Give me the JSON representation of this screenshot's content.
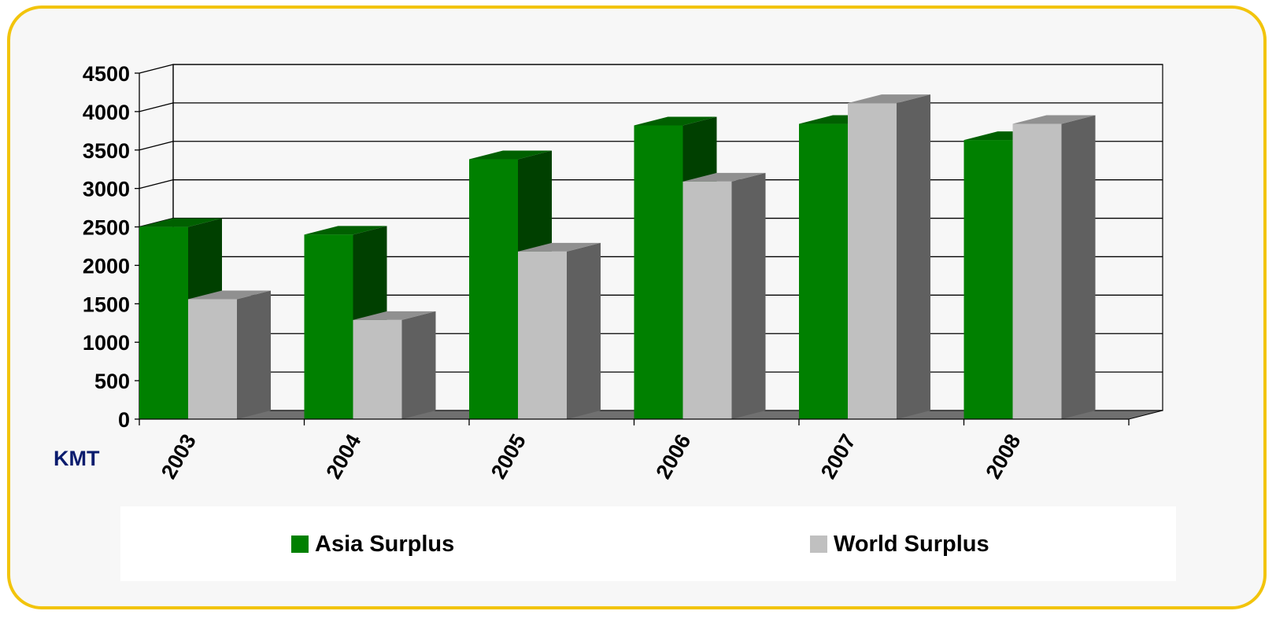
{
  "chart_data": {
    "type": "bar",
    "style": "3d-clustered-column",
    "unit_label": "KMT",
    "categories": [
      "2003",
      "2004",
      "2005",
      "2006",
      "2007",
      "2008"
    ],
    "series": [
      {
        "name": "Asia Surplus",
        "values": [
          2500,
          2400,
          3380,
          3820,
          3840,
          3630
        ],
        "color": "#008000",
        "side_color": "#004000",
        "top_color": "#006000"
      },
      {
        "name": "World Surplus",
        "values": [
          1560,
          1290,
          2180,
          3090,
          4110,
          3840
        ],
        "color": "#c0c0c0",
        "side_color": "#606060",
        "top_color": "#909090"
      }
    ],
    "y_ticks": [
      "0",
      "500",
      "1000",
      "1500",
      "2000",
      "2500",
      "3000",
      "3500",
      "4000",
      "4500"
    ],
    "ylim": [
      0,
      4500
    ],
    "grid": true,
    "legend_position": "bottom"
  },
  "colors": {
    "frame_border": "#f2c40c",
    "plot_background": "#f7f7f7",
    "unit_label": "#0b1c6e",
    "floor": "#707070"
  }
}
